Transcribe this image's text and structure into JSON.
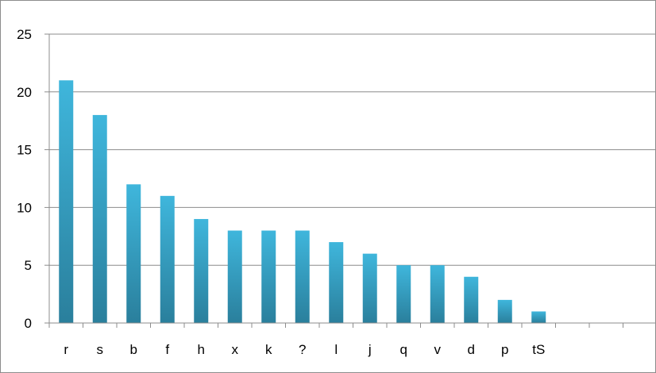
{
  "chart_data": {
    "type": "bar",
    "categories": [
      "r",
      "s",
      "b",
      "f",
      "h",
      "x",
      "k",
      "?",
      "l",
      "j",
      "q",
      "v",
      "d",
      "p",
      "tS",
      "",
      ""
    ],
    "values": [
      21,
      18,
      12,
      11,
      9,
      8,
      8,
      8,
      7,
      6,
      5,
      5,
      4,
      2,
      1,
      null,
      null
    ],
    "ylim": [
      0,
      25
    ],
    "yticks": [
      0,
      5,
      10,
      15,
      20,
      25
    ],
    "grid": true,
    "legend": "none",
    "title": "",
    "xlabel": "",
    "ylabel": "",
    "colors": {
      "bar_top": "#3fb6dc",
      "bar_bottom": "#2a7f9c",
      "grid": "#8c8c8c",
      "axis": "#8c8c8c"
    }
  }
}
